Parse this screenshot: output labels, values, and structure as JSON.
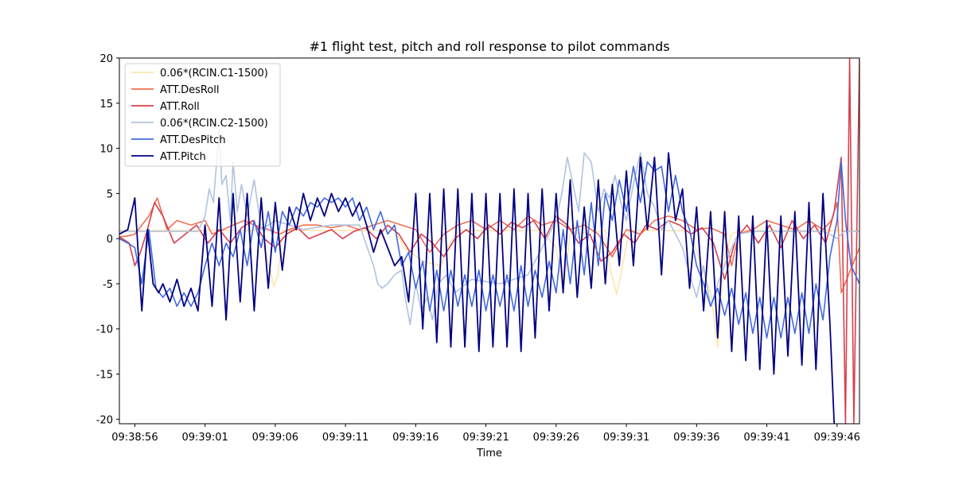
{
  "chart_data": {
    "type": "line",
    "title": "#1 flight test, pitch and roll response to pilot commands",
    "xlabel": "Time",
    "ylabel": "",
    "x_ticks": [
      "09:38:56",
      "09:39:01",
      "09:39:06",
      "09:39:11",
      "09:39:16",
      "09:39:21",
      "09:39:26",
      "09:39:31",
      "09:39:36",
      "09:39:41",
      "09:39:46"
    ],
    "x_tick_values": [
      56,
      61,
      66,
      71,
      76,
      81,
      86,
      91,
      96,
      101,
      106
    ],
    "xlim": [
      "09:38:54.9",
      "09:39:47.6"
    ],
    "ylim": [
      -20.5,
      20
    ],
    "y_ticks": [
      -20,
      -15,
      -10,
      -5,
      0,
      5,
      10,
      15,
      20
    ],
    "grid": false,
    "legend_position": "top-left",
    "series": [
      {
        "name": "0.06*(RCIN.C1-1500)",
        "color": "#ffe4b0",
        "x": [
          54.9,
          64.8,
          65.3,
          65.6,
          65.9,
          66.2,
          66.5,
          67.2,
          74.5,
          75.2,
          76.5,
          77.8,
          78.3,
          78.8,
          79.3,
          85.0,
          86.0,
          86.5,
          87.0,
          89.5,
          89.8,
          90.3,
          90.6,
          91.2,
          95.5,
          97.0,
          97.5,
          97.7,
          98.0,
          98.5,
          99.0,
          107.6
        ],
        "values": [
          0.9,
          0.9,
          -1.5,
          -3.2,
          -5.3,
          -4.0,
          0.9,
          0.9,
          0.9,
          -1.0,
          -2.5,
          -3.0,
          -1.0,
          0.5,
          0.9,
          0.9,
          -1.0,
          -5.8,
          0.5,
          0.9,
          -3.0,
          -6.2,
          -4.0,
          0.9,
          0.9,
          -6.0,
          -12.0,
          -7.0,
          -2.0,
          0.5,
          0.9,
          0.9
        ]
      },
      {
        "name": "ATT.DesRoll",
        "color": "#f07050",
        "x": [
          54.9,
          55.5,
          56.0,
          56.5,
          57.0,
          57.6,
          58.3,
          59.0,
          60.0,
          61.0,
          61.5,
          62.3,
          63.0,
          63.8,
          64.5,
          65.5,
          66.3,
          67.0,
          68.0,
          69.0,
          70.0,
          71.0,
          72.0,
          73.0,
          74.0,
          75.0,
          76.0,
          77.0,
          78.0,
          79.0,
          80.0,
          81.0,
          82.0,
          83.0,
          84.0,
          85.0,
          86.0,
          87.0,
          88.0,
          89.0,
          90.0,
          91.0,
          92.0,
          93.0,
          94.0,
          95.0,
          96.0,
          97.0,
          98.0,
          98.5,
          99.0,
          100.0,
          101.0,
          102.0,
          103.0,
          104.0,
          105.0,
          105.6,
          106.0,
          106.3,
          107.6
        ],
        "values": [
          0.2,
          0.3,
          0.5,
          1.5,
          2.5,
          4.5,
          1.0,
          2.0,
          1.5,
          2.0,
          0.5,
          1.0,
          1.5,
          2.0,
          1.5,
          1.0,
          0.5,
          1.0,
          1.5,
          1.5,
          1.2,
          1.5,
          1.0,
          1.5,
          2.0,
          1.5,
          1.0,
          -1.5,
          0.5,
          1.5,
          2.0,
          1.0,
          2.0,
          1.0,
          2.5,
          1.5,
          2.0,
          1.0,
          1.5,
          0.5,
          -2.0,
          1.0,
          0.5,
          2.0,
          2.5,
          2.0,
          1.0,
          1.2,
          0.5,
          -3.0,
          0.5,
          1.0,
          2.0,
          1.5,
          1.0,
          2.0,
          1.0,
          2.0,
          4.0,
          -6.0,
          -1.0
        ]
      },
      {
        "name": "ATT.Roll",
        "color": "#d6404e",
        "x": [
          54.9,
          55.6,
          56.0,
          56.4,
          56.9,
          57.4,
          58.0,
          58.8,
          59.6,
          60.4,
          61.2,
          62.0,
          62.8,
          63.6,
          64.4,
          65.2,
          66.0,
          66.8,
          67.6,
          68.4,
          69.2,
          70.0,
          70.8,
          71.6,
          72.4,
          73.2,
          74.0,
          74.8,
          75.6,
          76.4,
          77.2,
          78.0,
          78.8,
          79.6,
          80.4,
          81.2,
          82.0,
          82.8,
          83.6,
          84.4,
          85.2,
          86.0,
          86.8,
          87.6,
          88.4,
          89.2,
          90.0,
          90.8,
          91.6,
          92.4,
          93.2,
          94.0,
          94.8,
          95.6,
          96.4,
          97.2,
          98.0,
          98.8,
          99.6,
          100.4,
          101.2,
          102.0,
          102.8,
          103.6,
          104.4,
          105.2,
          105.8,
          106.3,
          106.6,
          106.9,
          107.2,
          107.6
        ],
        "values": [
          0.2,
          -0.5,
          -3.0,
          -1.5,
          1.0,
          4.0,
          2.5,
          -0.5,
          0.5,
          1.5,
          -0.5,
          1.0,
          -0.5,
          1.2,
          2.0,
          0.0,
          -1.0,
          0.5,
          1.2,
          0.0,
          0.5,
          1.0,
          0.0,
          0.8,
          1.2,
          0.0,
          1.5,
          0.5,
          -1.5,
          0.5,
          -0.5,
          -2.0,
          0.0,
          1.0,
          0.0,
          1.5,
          0.5,
          1.8,
          1.2,
          2.0,
          0.0,
          2.5,
          1.5,
          -0.5,
          0.5,
          -2.5,
          -1.5,
          0.5,
          -0.5,
          1.5,
          1.0,
          2.0,
          1.5,
          0.5,
          1.2,
          -0.5,
          -4.5,
          0.0,
          1.5,
          -0.5,
          1.5,
          -1.0,
          2.0,
          0.0,
          1.5,
          -0.5,
          3.0,
          9.0,
          -20.5,
          20.0,
          -20.5,
          20.0
        ]
      },
      {
        "name": "0.06*(RCIN.C2-1500)",
        "color": "#b0c4de",
        "x": [
          54.9,
          60.5,
          61.0,
          61.3,
          61.6,
          62.0,
          62.2,
          62.5,
          62.8,
          63.0,
          63.3,
          63.6,
          64.0,
          64.5,
          65.0,
          66.0,
          68.0,
          70.0,
          72.0,
          73.0,
          73.3,
          73.6,
          74.0,
          74.5,
          75.0,
          75.3,
          75.6,
          76.0,
          76.4,
          76.8,
          77.2,
          77.6,
          78.2,
          78.8,
          80.0,
          82.0,
          84.0,
          86.0,
          86.4,
          86.8,
          87.2,
          87.6,
          88.0,
          88.5,
          89.0,
          89.4,
          89.8,
          90.2,
          90.6,
          91.0,
          91.5,
          92.0,
          92.5,
          93.0,
          93.5,
          94.0,
          94.5,
          95.0,
          95.5,
          96.0,
          96.5,
          97.0,
          97.5,
          98.0,
          98.5,
          99.0,
          100.0,
          101.0,
          102.0,
          103.0,
          104.0,
          105.0,
          105.5,
          106.0,
          106.5,
          107.6
        ],
        "values": [
          0.8,
          0.8,
          2.5,
          5.5,
          4.0,
          12.0,
          6.0,
          7.0,
          2.0,
          8.5,
          3.0,
          6.0,
          2.5,
          6.5,
          1.0,
          2.0,
          1.0,
          1.5,
          1.5,
          -3.0,
          -5.0,
          -5.5,
          -5.0,
          -4.0,
          -3.5,
          -7.0,
          -9.5,
          -5.0,
          -8.0,
          -6.5,
          -9.0,
          -5.0,
          -4.0,
          -6.0,
          -4.5,
          -5.0,
          -4.0,
          2.0,
          5.0,
          9.0,
          6.0,
          3.0,
          9.5,
          8.5,
          3.0,
          5.5,
          4.5,
          7.0,
          4.0,
          2.0,
          6.0,
          9.5,
          5.0,
          3.5,
          1.0,
          2.0,
          0.5,
          -1.0,
          -4.0,
          -6.5,
          -3.0,
          -7.5,
          -5.0,
          -3.0,
          -1.0,
          0.5,
          0.8,
          0.8,
          0.8,
          0.8,
          0.8,
          0.8,
          0.5,
          0.0,
          0.8,
          0.8
        ]
      },
      {
        "name": "ATT.DesPitch",
        "color": "#4169e1",
        "x": [
          54.9,
          55.5,
          56.0,
          56.5,
          57.0,
          57.5,
          58.0,
          58.5,
          59.0,
          59.5,
          60.0,
          60.5,
          61.0,
          61.5,
          62.0,
          62.5,
          63.0,
          63.5,
          64.0,
          64.5,
          65.0,
          65.5,
          66.0,
          66.5,
          67.0,
          67.5,
          68.0,
          68.5,
          69.0,
          69.5,
          70.0,
          70.5,
          71.0,
          71.5,
          72.0,
          72.5,
          73.0,
          73.5,
          74.0,
          74.5,
          75.0,
          75.5,
          76.0,
          76.5,
          77.0,
          77.5,
          78.0,
          78.5,
          79.0,
          79.5,
          80.0,
          80.5,
          81.0,
          81.5,
          82.0,
          82.5,
          83.0,
          83.5,
          84.0,
          84.5,
          85.0,
          85.5,
          86.0,
          86.5,
          87.0,
          87.5,
          88.0,
          88.5,
          89.0,
          89.5,
          90.0,
          90.5,
          91.0,
          91.5,
          92.0,
          92.5,
          93.0,
          93.5,
          94.0,
          94.5,
          95.0,
          95.5,
          96.0,
          96.5,
          97.0,
          97.5,
          98.0,
          98.5,
          99.0,
          99.5,
          100.0,
          100.5,
          101.0,
          101.5,
          102.0,
          102.5,
          103.0,
          103.5,
          104.0,
          104.5,
          105.0,
          105.5,
          106.0,
          106.3,
          106.6,
          107.0,
          107.6
        ],
        "values": [
          0.0,
          -0.5,
          -1.0,
          -5.0,
          1.0,
          -5.5,
          -6.5,
          -5.5,
          -7.5,
          -6.0,
          -7.5,
          -6.0,
          -3.0,
          -0.5,
          -3.0,
          -0.5,
          -2.0,
          1.0,
          -3.0,
          2.0,
          -1.0,
          3.0,
          -1.5,
          3.0,
          1.5,
          3.5,
          2.5,
          4.0,
          3.5,
          4.5,
          4.0,
          4.5,
          3.5,
          4.5,
          2.0,
          3.5,
          1.0,
          3.0,
          0.5,
          1.5,
          -3.0,
          -1.5,
          -5.5,
          -2.5,
          -8.0,
          -3.5,
          -8.0,
          -3.5,
          -7.5,
          -4.0,
          -7.5,
          -3.5,
          -8.0,
          -4.0,
          -7.5,
          -4.0,
          -8.0,
          -3.0,
          -7.5,
          -3.5,
          -6.5,
          -2.5,
          -6.0,
          1.0,
          -5.0,
          2.0,
          -4.0,
          4.0,
          -3.0,
          5.0,
          2.0,
          6.5,
          3.0,
          8.0,
          4.0,
          8.5,
          7.5,
          8.0,
          3.0,
          7.0,
          3.0,
          1.0,
          -3.0,
          -5.0,
          -7.5,
          -5.5,
          -8.5,
          -5.5,
          -9.5,
          -6.0,
          -10.5,
          -6.5,
          -11.0,
          -6.5,
          -11.0,
          -6.5,
          -10.5,
          -6.0,
          -10.5,
          -5.0,
          -9.0,
          -2.0,
          2.0,
          8.5,
          2.0,
          -3.0,
          -5.0
        ]
      },
      {
        "name": "ATT.Pitch",
        "color": "#000080",
        "x": [
          54.9,
          55.5,
          56.0,
          56.5,
          56.9,
          57.3,
          57.7,
          58.0,
          58.5,
          59.0,
          59.5,
          60.0,
          60.5,
          61.0,
          61.5,
          62.0,
          62.5,
          63.0,
          63.5,
          64.0,
          64.5,
          65.0,
          65.5,
          66.0,
          66.5,
          67.0,
          67.5,
          68.0,
          68.5,
          69.0,
          69.5,
          70.0,
          70.5,
          71.0,
          71.5,
          72.0,
          72.5,
          73.0,
          73.5,
          74.0,
          74.5,
          75.0,
          75.5,
          76.0,
          76.5,
          77.0,
          77.5,
          78.0,
          78.5,
          79.0,
          79.5,
          80.0,
          80.5,
          81.0,
          81.5,
          82.0,
          82.5,
          83.0,
          83.5,
          84.0,
          84.5,
          85.0,
          85.5,
          86.0,
          86.5,
          87.0,
          87.5,
          88.0,
          88.5,
          89.0,
          89.5,
          90.0,
          90.5,
          91.0,
          91.5,
          92.0,
          92.5,
          93.0,
          93.5,
          94.0,
          94.5,
          95.0,
          95.5,
          96.0,
          96.5,
          97.0,
          97.5,
          98.0,
          98.5,
          99.0,
          99.5,
          100.0,
          100.5,
          101.0,
          101.5,
          102.0,
          102.5,
          103.0,
          103.5,
          104.0,
          104.5,
          105.0,
          105.5,
          105.8
        ],
        "values": [
          0.5,
          1.0,
          4.5,
          -8.0,
          1.0,
          -5.0,
          -6.0,
          -5.0,
          -7.0,
          -4.5,
          -7.5,
          -5.5,
          -8.0,
          1.5,
          -7.5,
          4.5,
          -9.0,
          5.0,
          -7.0,
          5.0,
          -8.0,
          4.5,
          -5.5,
          4.0,
          -3.5,
          3.5,
          1.0,
          5.0,
          2.0,
          4.5,
          2.5,
          5.0,
          3.0,
          4.5,
          2.5,
          4.0,
          1.5,
          -1.5,
          1.0,
          -1.0,
          -3.0,
          -2.0,
          -7.0,
          5.0,
          -10.0,
          5.0,
          -11.5,
          5.5,
          -12.0,
          5.5,
          -12.0,
          5.0,
          -12.5,
          5.0,
          -12.0,
          5.0,
          -12.0,
          5.5,
          -12.5,
          5.0,
          -11.0,
          5.5,
          -8.0,
          5.0,
          -6.0,
          6.5,
          -6.5,
          3.5,
          -5.5,
          6.5,
          -5.0,
          6.0,
          -3.0,
          7.5,
          -3.0,
          9.0,
          1.0,
          9.0,
          -4.0,
          9.5,
          2.0,
          5.5,
          -5.5,
          3.5,
          -8.0,
          3.0,
          -11.0,
          3.0,
          -12.5,
          2.5,
          -13.5,
          2.5,
          -14.5,
          2.0,
          -15.0,
          2.5,
          -13.0,
          3.0,
          -14.0,
          4.0,
          -14.5,
          5.0,
          -9.5,
          -20.5
        ]
      }
    ]
  }
}
